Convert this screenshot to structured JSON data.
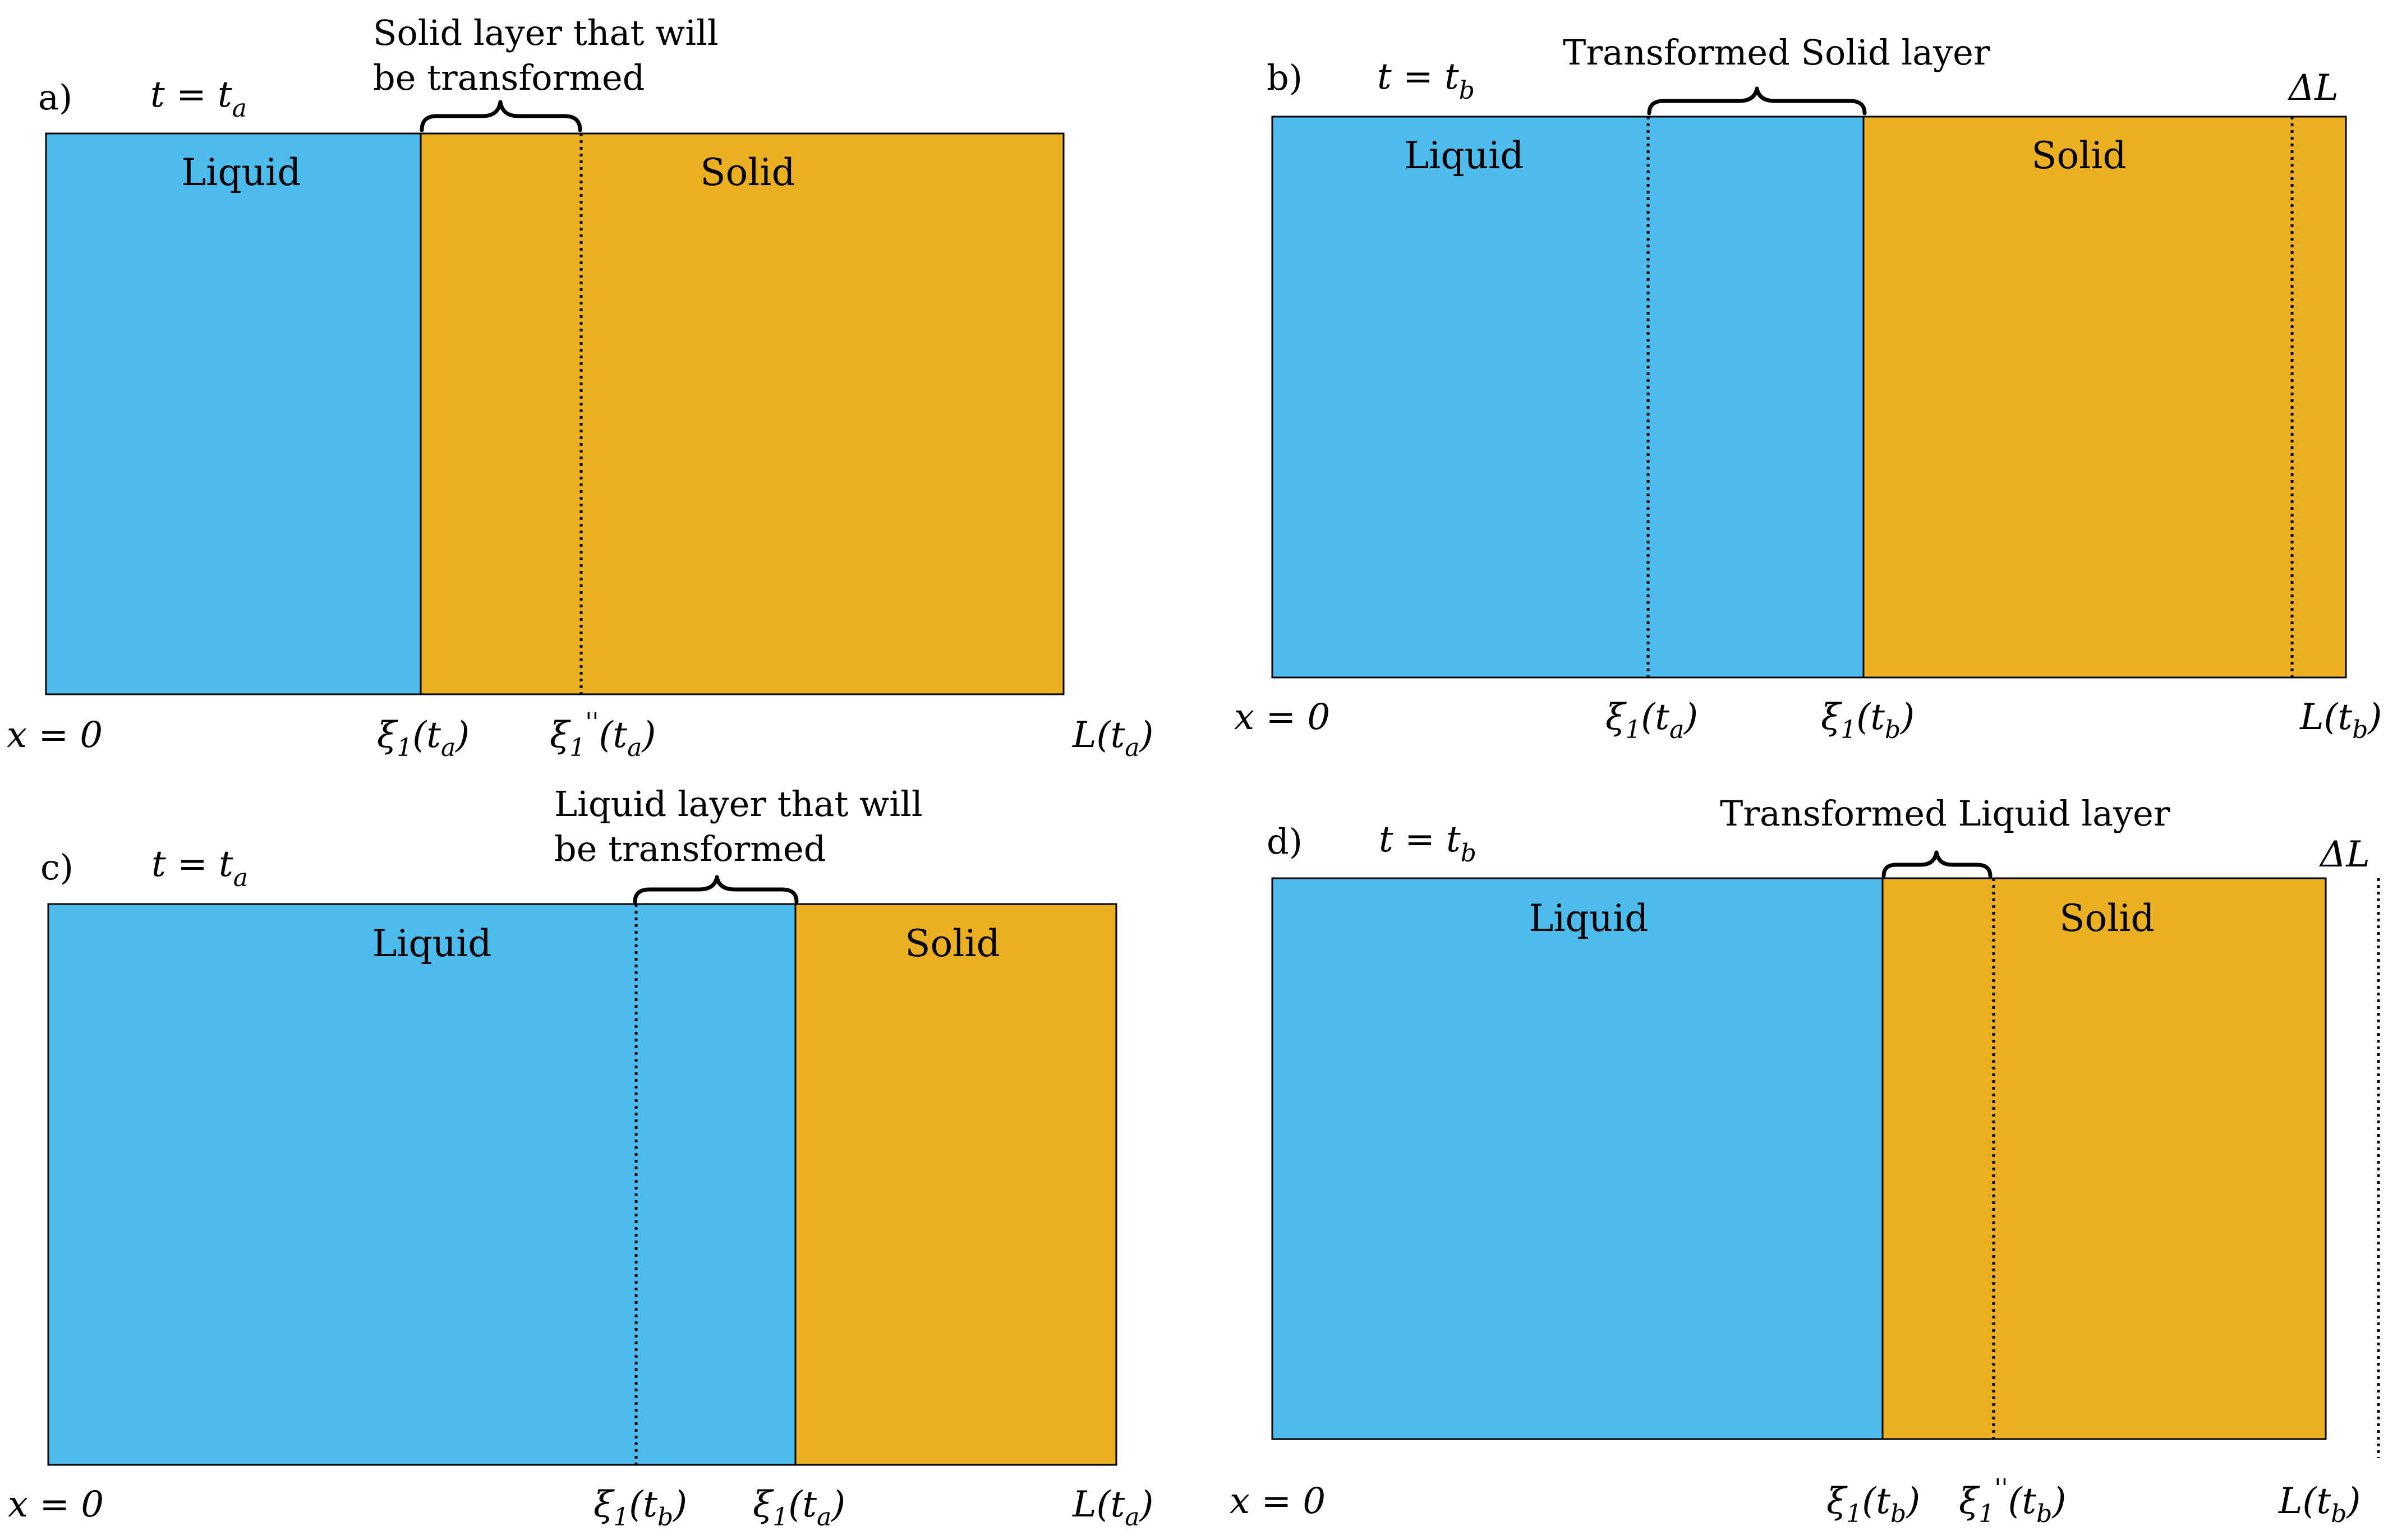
{
  "colors": {
    "liquid": "#4DBCEC",
    "solid": "#EAB022",
    "outline": "#000000"
  },
  "panels": {
    "a": {
      "tag": "a)",
      "time_label": "t = t_a",
      "annotation_line1": "Solid layer that will",
      "annotation_line2": "be transformed",
      "liquid_label": "Liquid",
      "solid_label": "Solid",
      "x0_label": "x = 0",
      "xi_a_label": "ξ1(ta)",
      "xi_pp_a_label": "ξ1''(ta)",
      "L_a_label": "L(ta)"
    },
    "b": {
      "tag": "b)",
      "time_label": "t = t_b",
      "annotation": "Transformed Solid layer",
      "liquid_label": "Liquid",
      "solid_label": "Solid",
      "delta_L_label": "ΔL",
      "x0_label": "x = 0",
      "xi_a_label": "ξ1(ta)",
      "xi_b_label": "ξ1(tb)",
      "L_b_label": "L(tb)"
    },
    "c": {
      "tag": "c)",
      "time_label": "t = t_a",
      "annotation_line1": "Liquid layer that will",
      "annotation_line2": "be transformed",
      "liquid_label": "Liquid",
      "solid_label": "Solid",
      "x0_label": "x = 0",
      "xi_b_label": "ξ1(tb)",
      "xi_a_label": "ξ1(ta)",
      "L_a_label": "L(ta)"
    },
    "d": {
      "tag": "d)",
      "time_label": "t = t_b",
      "annotation": "Transformed Liquid layer",
      "liquid_label": "Liquid",
      "solid_label": "Solid",
      "delta_L_label": "ΔL",
      "x0_label": "x = 0",
      "xi_b_label": "ξ1(tb)",
      "xi_pp_b_label": "ξ1''(tb)",
      "L_b_label": "L(tb)"
    }
  }
}
